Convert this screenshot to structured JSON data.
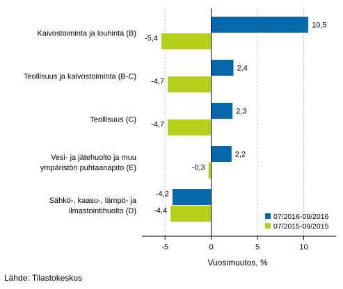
{
  "chart_data": {
    "type": "bar",
    "orientation": "horizontal",
    "categories": [
      [
        "Kaivostoiminta ja louhinta (B)"
      ],
      [
        "Teollisuus ja kaivostoiminta (B-C)"
      ],
      [
        "Teollisuus (C)"
      ],
      [
        "Vesi- ja jätehuolto ja muu",
        "ympäristön puhtaanapito (E)"
      ],
      [
        "Sähkö-, kaasu-, lämpö- ja",
        "ilmastointihuolto (D)"
      ]
    ],
    "series": [
      {
        "name": "07/2016-09/2016",
        "color": "#0868ac",
        "values": [
          10.5,
          2.4,
          2.3,
          2.2,
          -4.2
        ]
      },
      {
        "name": "07/2015-09/2015",
        "color": "#b5cf1a",
        "values": [
          -5.4,
          -4.7,
          -4.7,
          -0.3,
          -4.4
        ]
      }
    ],
    "value_labels": [
      [
        "10,5",
        "2,4",
        "2,3",
        "2,2",
        "-4,2"
      ],
      [
        "-5,4",
        "-4,7",
        "-4,7",
        "-0,3",
        "-4,4"
      ]
    ],
    "xlim": [
      -7.5,
      13.5
    ],
    "xticks": [
      -5,
      0,
      5,
      10
    ],
    "xtick_labels": [
      "-5",
      "0",
      "5",
      "10"
    ],
    "xlabel": "Vuosimuutos, %",
    "ylabel": "",
    "title": "",
    "grid": "vertical",
    "legend_position": "bottom-right"
  },
  "source": "Lähde: Tilastokeskus"
}
